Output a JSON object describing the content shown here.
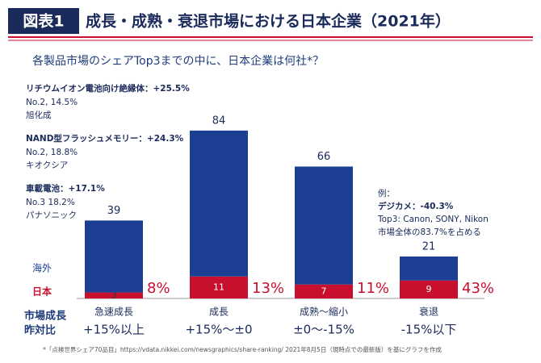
{
  "chart_data": {
    "type": "stacked_bar",
    "figure_label": "図表1",
    "title": "成長・成熟・衰退市場における日本企業（2021年）",
    "subtitle": "各製品市場のシェアTop3までの中に、日本企業は何社*？",
    "categories": [
      "急速成長",
      "成長",
      "成熟〜縮小",
      "衰退"
    ],
    "growth_labels": [
      "+15%以上",
      "+15%〜±0",
      "±0〜-15%",
      "-15%以下"
    ],
    "x_label": [
      "市場成長",
      "昨対比"
    ],
    "series": [
      {
        "name": "日本",
        "color": "#c8102e",
        "values": [
          3,
          11,
          7,
          9
        ]
      },
      {
        "name": "海外",
        "color": "#1c3f94",
        "values": [
          36,
          73,
          59,
          12
        ]
      }
    ],
    "total_labels": [
      39,
      84,
      66,
      21
    ],
    "share_labels": [
      "8%",
      "13%",
      "11%",
      "43%"
    ],
    "ylim": [
      0,
      90
    ],
    "annotations": [
      {
        "title": "リチウムイオン電池向け絶縁体：+25.5%",
        "lines": [
          "No.2, 14.5%",
          "旭化成"
        ]
      },
      {
        "title": "NAND型フラッシュメモリー：+24.3%",
        "lines": [
          "No.2, 18.8%",
          "キオクシア"
        ]
      },
      {
        "title": "車載電池：+17.1%",
        "lines": [
          "No.3 18.2%",
          "パナソニック"
        ]
      }
    ],
    "example": {
      "title": "例：",
      "lines": [
        "デジカメ：-40.3%",
        "Top3: Canon, SONY, Nikon",
        "市場全体の83.7%を占める"
      ]
    },
    "footnote": "*「点検世界シェア70品目」https://vdata.nikkei.com/newsgraphics/share-ranking/ 2021年8月5日（現時点での最新版）を基にグラフを作成"
  }
}
